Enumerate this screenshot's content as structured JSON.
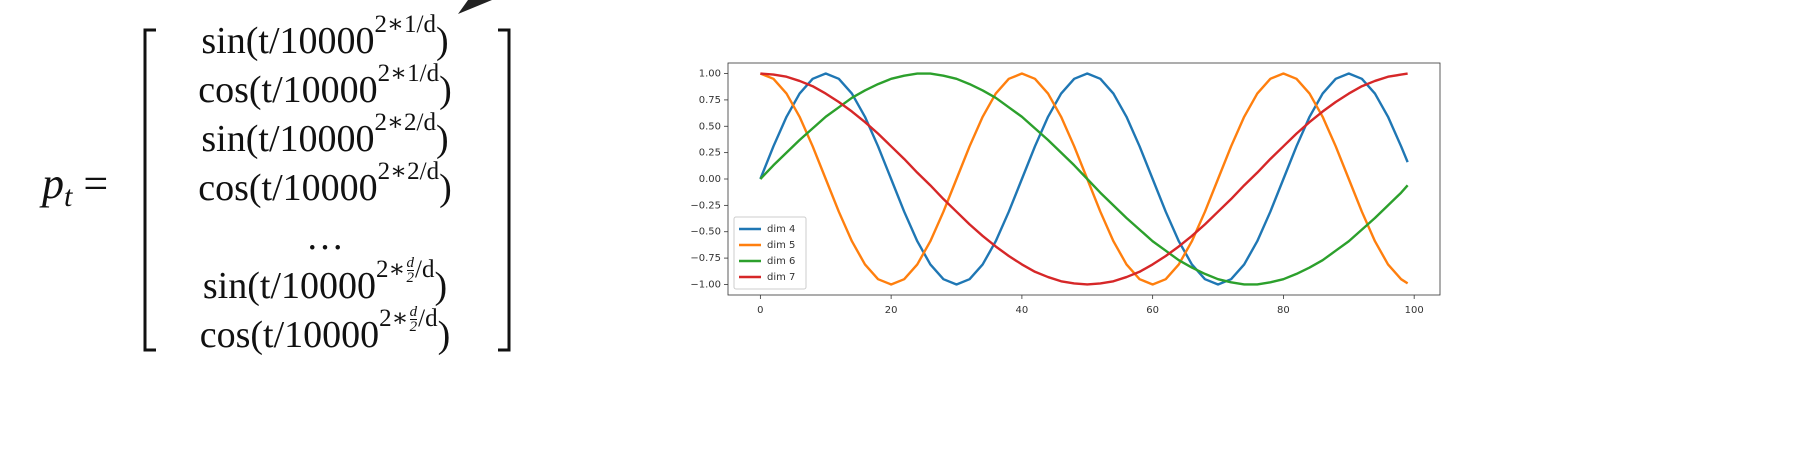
{
  "equation": {
    "lhs": "p",
    "lhs_sub": "t",
    "equals": "=",
    "rows": [
      {
        "fn": "sin",
        "arg": "(t/10000",
        "exp": "2∗1/d",
        "close": ")"
      },
      {
        "fn": "cos",
        "arg": "(t/10000",
        "exp": "2∗1/d",
        "close": ")"
      },
      {
        "fn": "sin",
        "arg": "(t/10000",
        "exp": "2∗2/d",
        "close": ")"
      },
      {
        "fn": "cos",
        "arg": "(t/10000",
        "exp": "2∗2/d",
        "close": ")"
      },
      {
        "text": "…"
      },
      {
        "fn": "sin",
        "arg": "(t/10000",
        "exp": "2∗",
        "frac": [
          "d",
          "2"
        ],
        "exp_tail": "/d",
        "close": ")"
      },
      {
        "fn": "cos",
        "arg": "(t/10000",
        "exp": "2∗",
        "frac": [
          "d",
          "2"
        ],
        "exp_tail": "/d",
        "close": ")"
      }
    ]
  },
  "chart_data": {
    "type": "line",
    "x": [
      0,
      2,
      4,
      6,
      8,
      10,
      12,
      14,
      16,
      18,
      20,
      22,
      24,
      26,
      28,
      30,
      32,
      34,
      36,
      38,
      40,
      42,
      44,
      46,
      48,
      50,
      52,
      54,
      56,
      58,
      60,
      62,
      64,
      66,
      68,
      70,
      72,
      74,
      76,
      78,
      80,
      82,
      84,
      86,
      88,
      90,
      92,
      94,
      96,
      98,
      99
    ],
    "series": [
      {
        "name": "dim 4",
        "color": "#1f77b4",
        "values": [
          0,
          0.31,
          0.59,
          0.81,
          0.95,
          1,
          0.95,
          0.81,
          0.59,
          0.31,
          0,
          -0.31,
          -0.59,
          -0.81,
          -0.95,
          -1,
          -0.95,
          -0.81,
          -0.59,
          -0.31,
          0,
          0.31,
          0.59,
          0.81,
          0.95,
          1,
          0.95,
          0.81,
          0.59,
          0.31,
          0,
          -0.31,
          -0.59,
          -0.81,
          -0.95,
          -1,
          -0.95,
          -0.81,
          -0.59,
          -0.31,
          0,
          0.31,
          0.59,
          0.81,
          0.95,
          1,
          0.95,
          0.81,
          0.59,
          0.31,
          0.16
        ]
      },
      {
        "name": "dim 5",
        "color": "#ff7f0e",
        "values": [
          1,
          0.95,
          0.81,
          0.59,
          0.31,
          0,
          -0.31,
          -0.59,
          -0.81,
          -0.95,
          -1,
          -0.95,
          -0.81,
          -0.59,
          -0.31,
          0,
          0.31,
          0.59,
          0.81,
          0.95,
          1,
          0.95,
          0.81,
          0.59,
          0.31,
          0,
          -0.31,
          -0.59,
          -0.81,
          -0.95,
          -1,
          -0.95,
          -0.81,
          -0.59,
          -0.31,
          0,
          0.31,
          0.59,
          0.81,
          0.95,
          1,
          0.95,
          0.81,
          0.59,
          0.31,
          0,
          -0.31,
          -0.59,
          -0.81,
          -0.95,
          -0.99
        ]
      },
      {
        "name": "dim 6",
        "color": "#2ca02c",
        "values": [
          0,
          0.13,
          0.25,
          0.37,
          0.48,
          0.59,
          0.68,
          0.77,
          0.84,
          0.9,
          0.95,
          0.98,
          1,
          1,
          0.98,
          0.95,
          0.9,
          0.84,
          0.77,
          0.68,
          0.59,
          0.48,
          0.37,
          0.25,
          0.13,
          0,
          -0.13,
          -0.25,
          -0.37,
          -0.48,
          -0.59,
          -0.68,
          -0.77,
          -0.84,
          -0.9,
          -0.95,
          -0.98,
          -1,
          -1,
          -0.98,
          -0.95,
          -0.9,
          -0.84,
          -0.77,
          -0.68,
          -0.59,
          -0.48,
          -0.37,
          -0.25,
          -0.13,
          -0.06
        ]
      },
      {
        "name": "dim 7",
        "color": "#d62728",
        "values": [
          1,
          0.99,
          0.97,
          0.93,
          0.88,
          0.81,
          0.73,
          0.64,
          0.54,
          0.43,
          0.31,
          0.19,
          0.06,
          -0.06,
          -0.19,
          -0.31,
          -0.43,
          -0.54,
          -0.64,
          -0.73,
          -0.81,
          -0.88,
          -0.93,
          -0.97,
          -0.99,
          -1,
          -0.99,
          -0.97,
          -0.93,
          -0.88,
          -0.81,
          -0.73,
          -0.64,
          -0.54,
          -0.43,
          -0.31,
          -0.19,
          -0.06,
          0.06,
          0.19,
          0.31,
          0.43,
          0.54,
          0.64,
          0.73,
          0.81,
          0.88,
          0.93,
          0.97,
          0.99,
          1
        ]
      }
    ],
    "xlim": [
      -4.95,
      103.95
    ],
    "xticks": [
      0,
      20,
      40,
      60,
      80,
      100
    ],
    "ylim": [
      -1.1,
      1.1
    ],
    "yticks": [
      {
        "value": -1,
        "label": "−1.00"
      },
      {
        "value": -0.75,
        "label": "−0.75"
      },
      {
        "value": -0.5,
        "label": "−0.50"
      },
      {
        "value": -0.25,
        "label": "−0.25"
      },
      {
        "value": 0,
        "label": "0.00"
      },
      {
        "value": 0.25,
        "label": "0.25"
      },
      {
        "value": 0.5,
        "label": "0.50"
      },
      {
        "value": 0.75,
        "label": "0.75"
      },
      {
        "value": 1,
        "label": "1.00"
      }
    ],
    "legend": "lower left",
    "grid": false
  }
}
